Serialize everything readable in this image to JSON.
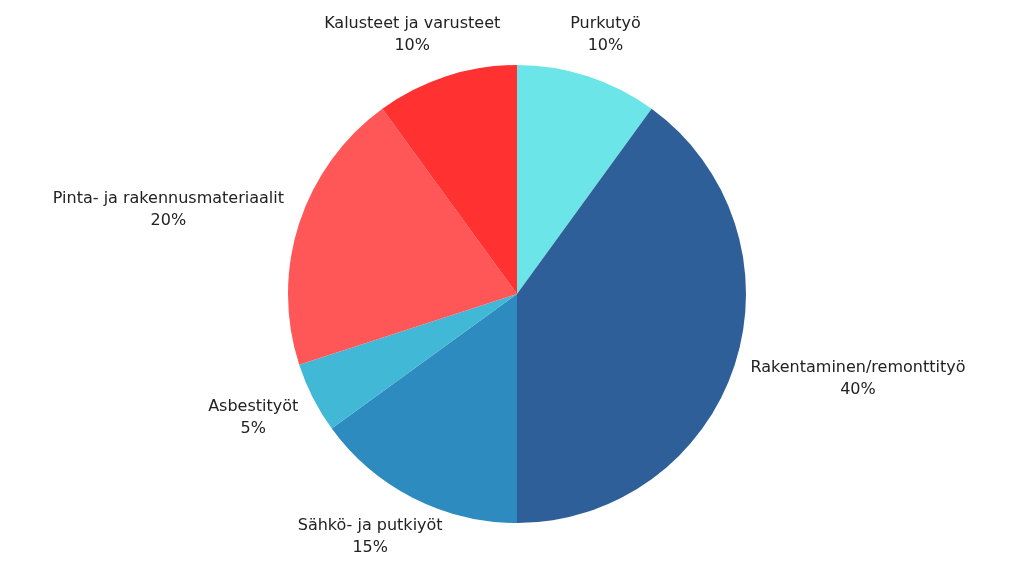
{
  "chart_data": {
    "type": "pie",
    "categories": [
      "Purkutyö",
      "Rakentaminen/remonttityö",
      "Sähkö- ja putkiyöt",
      "Asbestityöt",
      "Pinta- ja rakennusmateriaalit",
      "Kalusteet ja varusteet"
    ],
    "values": [
      10,
      40,
      15,
      5,
      20,
      10
    ],
    "colors": [
      "#6ce5e8",
      "#2f5f98",
      "#2e8bc0",
      "#41b8d5",
      "#ff5757",
      "#ff3131"
    ],
    "value_labels": [
      "10%",
      "40%",
      "15%",
      "5%",
      "20%",
      "10%"
    ]
  }
}
